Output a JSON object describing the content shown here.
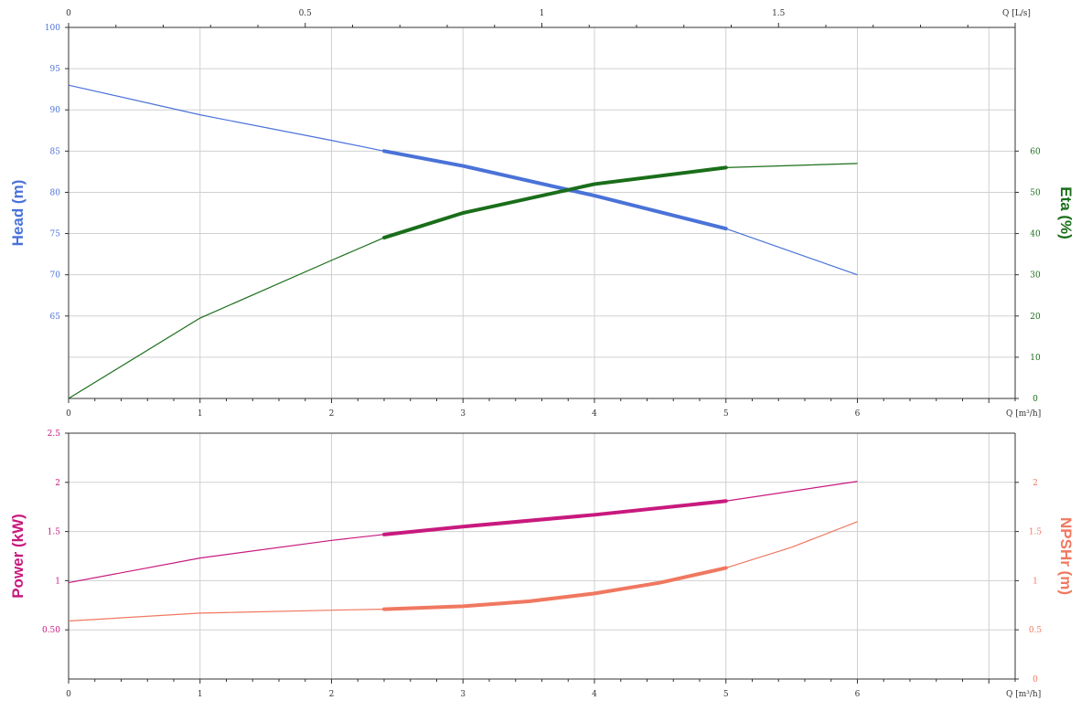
{
  "chart_data": [
    {
      "type": "line",
      "name": "head-eta-chart",
      "top_axis": {
        "label": "Q [L/s]",
        "ticks": [
          "0",
          "0.5",
          "1",
          "1.5"
        ],
        "values": [
          0,
          0.5,
          1,
          1.5
        ],
        "range": [
          0,
          2.0
        ]
      },
      "x_axis": {
        "label": "Q [m³/h]",
        "ticks": [
          "0",
          "1",
          "2",
          "3",
          "4",
          "5",
          "6"
        ],
        "values": [
          0,
          1,
          2,
          3,
          4,
          5,
          6
        ],
        "range": [
          0,
          7.2
        ]
      },
      "y_left": {
        "label": "Head (m)",
        "ticks": [
          "100",
          "95",
          "90",
          "85",
          "80",
          "75",
          "70",
          "65"
        ],
        "values": [
          100,
          95,
          90,
          85,
          80,
          75,
          70,
          65
        ],
        "range": [
          55,
          100
        ]
      },
      "y_right": {
        "label": "Eta (%)",
        "ticks": [
          "60",
          "50",
          "40",
          "30",
          "20",
          "10",
          "0"
        ],
        "values": [
          60,
          50,
          40,
          30,
          20,
          10,
          0
        ],
        "range": [
          0,
          90
        ]
      },
      "grid": true,
      "series": [
        {
          "name": "Head (m)",
          "axis": "left",
          "color": "#4a72d8",
          "x": [
            0,
            1,
            2,
            2.4,
            3,
            4,
            5,
            6
          ],
          "values": [
            93,
            89.4,
            86.3,
            85,
            83.2,
            79.6,
            75.6,
            70
          ],
          "bold_range": [
            2.4,
            5.0
          ]
        },
        {
          "name": "Eta (%)",
          "axis": "right",
          "color": "#1a6e1a",
          "x": [
            0,
            1,
            2,
            2.4,
            3,
            4,
            5,
            6
          ],
          "values": [
            0,
            19.5,
            33.5,
            39,
            45,
            52,
            56,
            57
          ],
          "bold_range": [
            2.4,
            5.0
          ]
        }
      ]
    },
    {
      "type": "line",
      "name": "power-npsh-chart",
      "x_axis": {
        "label": "Q [m³/h]",
        "ticks": [
          "0",
          "1",
          "2",
          "3",
          "4",
          "5",
          "6"
        ],
        "values": [
          0,
          1,
          2,
          3,
          4,
          5,
          6
        ],
        "range": [
          0,
          7.2
        ]
      },
      "y_left": {
        "label": "Power (kW)",
        "ticks": [
          "2.5",
          "2",
          "1.5",
          "1",
          "0.50"
        ],
        "values": [
          2.5,
          2,
          1.5,
          1,
          0.5
        ],
        "range": [
          0,
          2.5
        ]
      },
      "y_right": {
        "label": "NPSHr (m)",
        "ticks": [
          "2",
          "1.5",
          "1",
          "0.5",
          "0"
        ],
        "values": [
          2,
          1.5,
          1,
          0.5,
          0
        ],
        "range": [
          0,
          2.5
        ]
      },
      "grid": true,
      "series": [
        {
          "name": "Power (kW)",
          "axis": "left",
          "color": "#c8197e",
          "x": [
            0,
            1,
            2,
            2.4,
            3,
            4,
            5,
            6
          ],
          "values": [
            0.98,
            1.23,
            1.41,
            1.47,
            1.55,
            1.67,
            1.81,
            2.01
          ],
          "bold_range": [
            2.4,
            5.0
          ]
        },
        {
          "name": "NPSHr (m)",
          "axis": "right",
          "color": "#f07860",
          "x": [
            0,
            1,
            2,
            2.4,
            3,
            3.5,
            4,
            4.5,
            5,
            5.5,
            6
          ],
          "values": [
            0.59,
            0.67,
            0.7,
            0.71,
            0.74,
            0.79,
            0.87,
            0.98,
            1.13,
            1.34,
            1.6
          ],
          "bold_range": [
            2.4,
            5.0
          ]
        }
      ]
    }
  ]
}
